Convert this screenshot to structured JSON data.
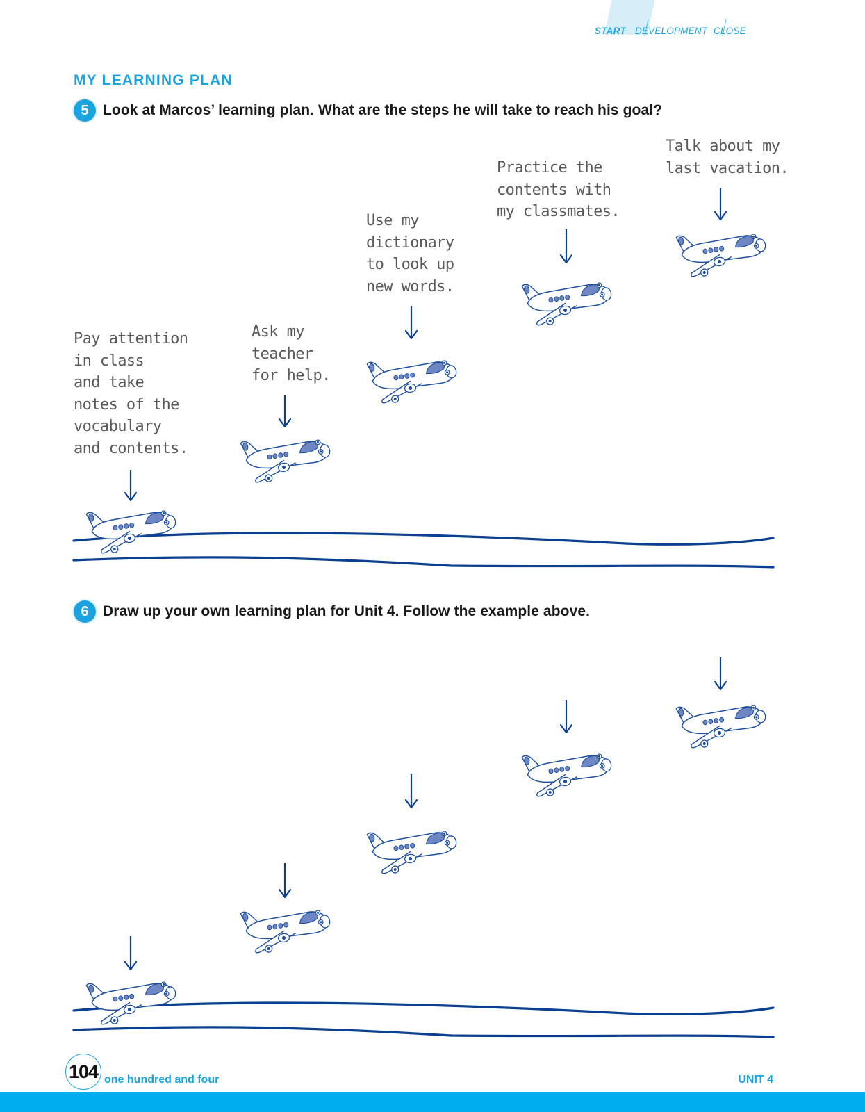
{
  "header": {
    "tabs": [
      {
        "label": "START",
        "active": true
      },
      {
        "label": "DEVELOPMENT",
        "active": false
      },
      {
        "label": "CLOSE",
        "active": false
      }
    ]
  },
  "section": {
    "title": "MY LEARNING PLAN"
  },
  "exercise5": {
    "number": "5",
    "prompt": "Look at Marcos’ learning plan. What are the steps he will take to reach his goal?",
    "steps": [
      "Pay attention\nin class\nand take\nnotes of the\nvocabulary\nand contents.",
      "Ask my\nteacher\nfor help.",
      "Use my\ndictionary\nto look up\nnew words.",
      "Practice the\ncontents with\nmy classmates.",
      "Talk about my\nlast vacation."
    ]
  },
  "exercise6": {
    "number": "6",
    "prompt": "Draw up your own learning plan for Unit 4. Follow the example above."
  },
  "footer": {
    "page_number": "104",
    "page_words": "one hundred and four",
    "unit": "UNIT 4"
  },
  "colors": {
    "accent": "#1aa3de",
    "footer_bar": "#00aeef",
    "line_navy": "#0b3f8f",
    "plane_stroke": "#1f4f9c",
    "plane_window": "#6f86c4"
  },
  "icons": [
    "airplane-icon",
    "down-arrow-icon",
    "runway-line"
  ]
}
